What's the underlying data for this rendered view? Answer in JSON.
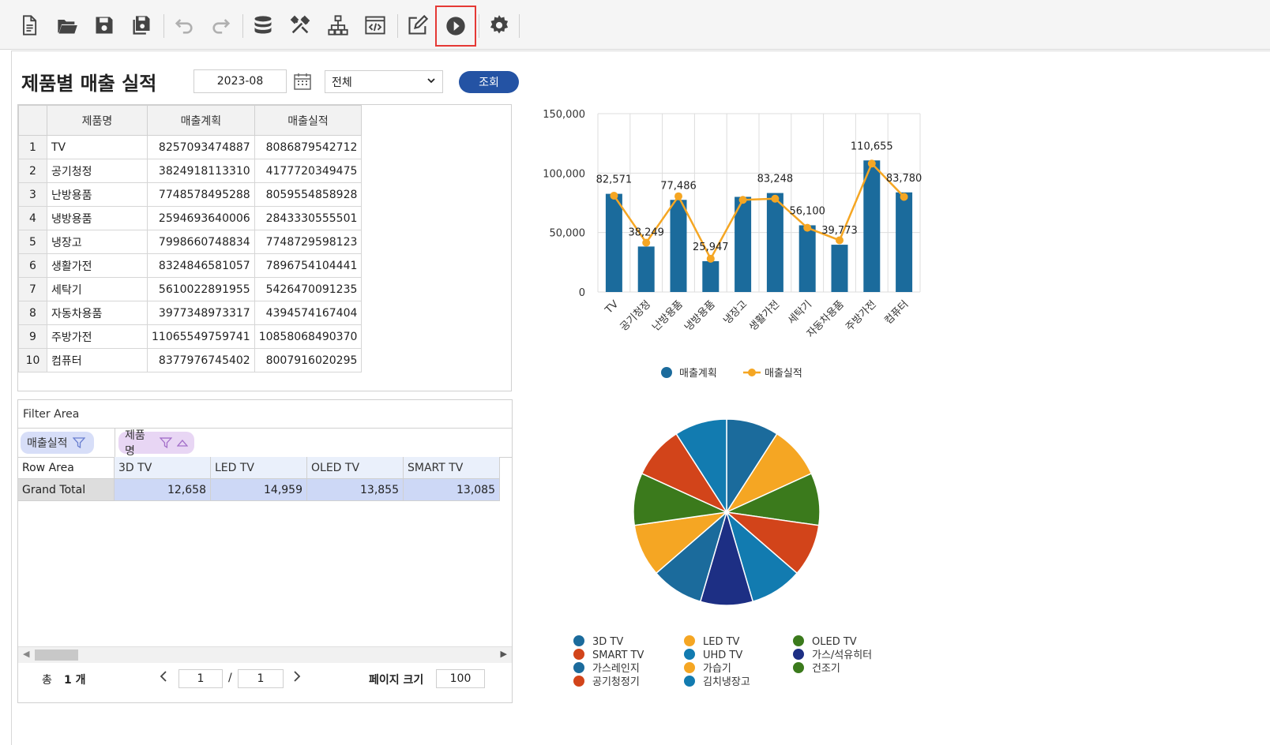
{
  "toolbar": {
    "buttons": [
      "new-document-icon",
      "open-folder-icon",
      "save-icon",
      "save-all-icon",
      "undo-icon",
      "redo-icon",
      "database-icon",
      "tools-icon",
      "hierarchy-icon",
      "code-icon",
      "edit-icon",
      "run-icon",
      "settings-icon"
    ]
  },
  "header": {
    "title": "제품별 매출 실적",
    "date_value": "2023-08",
    "select_value": "전체",
    "query_label": "조회"
  },
  "grid": {
    "columns": [
      "제품명",
      "매출계획",
      "매출실적"
    ],
    "rows": [
      {
        "n": "1",
        "name": "TV",
        "plan": "8257093474887",
        "actual": "8086879542712"
      },
      {
        "n": "2",
        "name": "공기청정",
        "plan": "3824918113310",
        "actual": "4177720349475"
      },
      {
        "n": "3",
        "name": "난방용품",
        "plan": "7748578495288",
        "actual": "8059554858928"
      },
      {
        "n": "4",
        "name": "냉방용품",
        "plan": "2594693640006",
        "actual": "2843330555501"
      },
      {
        "n": "5",
        "name": "냉장고",
        "plan": "7998660748834",
        "actual": "7748729598123"
      },
      {
        "n": "6",
        "name": "생활가전",
        "plan": "8324846581057",
        "actual": "7896754104441"
      },
      {
        "n": "7",
        "name": "세탁기",
        "plan": "5610022891955",
        "actual": "5426470091235"
      },
      {
        "n": "8",
        "name": "자동차용품",
        "plan": "3977348973317",
        "actual": "4394574167404"
      },
      {
        "n": "9",
        "name": "주방가전",
        "plan": "11065549759741",
        "actual": "10858068490370"
      },
      {
        "n": "10",
        "name": "컴퓨터",
        "plan": "8377976745402",
        "actual": "8007916020295"
      }
    ]
  },
  "pivot": {
    "filter_area_label": "Filter Area",
    "value_field": "매출실적",
    "column_field": "제품명",
    "row_area_label": "Row Area",
    "column_headers": [
      "3D TV",
      "LED TV",
      "OLED TV",
      "SMART TV"
    ],
    "grand_total_label": "Grand Total",
    "grand_total_values": [
      "12,658",
      "14,959",
      "13,855",
      "13,085"
    ],
    "pager": {
      "total_prefix": "총",
      "total_count": "1 개",
      "current_page": "1",
      "page_sep": "/",
      "total_pages": "1",
      "page_size_label": "페이지 크기",
      "page_size": "100"
    }
  },
  "chart_data": [
    {
      "type": "bar",
      "categories": [
        "TV",
        "공기청정",
        "난방용품",
        "냉방용품",
        "냉장고",
        "생활가전",
        "세탁기",
        "자동차용품",
        "주방가전",
        "컴퓨터"
      ],
      "series": [
        {
          "name": "매출계획",
          "type": "bar",
          "color": "#1b6b9c",
          "values": [
            82571,
            38249,
            77486,
            25947,
            80000,
            83248,
            56100,
            39773,
            110655,
            83780
          ]
        },
        {
          "name": "매출실적",
          "type": "line",
          "color": "#f5a623",
          "values": [
            81000,
            41500,
            80500,
            28000,
            77500,
            78500,
            54000,
            43500,
            108000,
            80000
          ]
        }
      ],
      "data_labels": [
        {
          "series": "매출계획",
          "index": 0,
          "text": "82,571"
        },
        {
          "series": "매출계획",
          "index": 1,
          "text": "38,249"
        },
        {
          "series": "매출계획",
          "index": 2,
          "text": "77,486"
        },
        {
          "series": "매출계획",
          "index": 3,
          "text": "25,947"
        },
        {
          "series": "매출계획",
          "index": 5,
          "text": "83,248"
        },
        {
          "series": "매출계획",
          "index": 6,
          "text": "56,100"
        },
        {
          "series": "매출계획",
          "index": 7,
          "text": "39,773"
        },
        {
          "series": "매출계획",
          "index": 8,
          "text": "110,655"
        },
        {
          "series": "매출계획",
          "index": 9,
          "text": "83,780"
        }
      ],
      "yticks": [
        "0",
        "50,000",
        "100,000",
        "150,000"
      ],
      "ylim": [
        0,
        150000
      ],
      "legend_position": "bottom",
      "grid": true
    },
    {
      "type": "pie",
      "slices": [
        {
          "label": "3D TV",
          "value": 1,
          "color": "#1b6b9c"
        },
        {
          "label": "LED TV",
          "value": 1,
          "color": "#f5a623"
        },
        {
          "label": "OLED TV",
          "value": 1,
          "color": "#3b7a1c"
        },
        {
          "label": "SMART TV",
          "value": 1,
          "color": "#d2441a"
        },
        {
          "label": "UHD TV",
          "value": 1,
          "color": "#127bb0"
        },
        {
          "label": "가스/석유히터",
          "value": 1,
          "color": "#1d2f84"
        },
        {
          "label": "가스레인지",
          "value": 1,
          "color": "#1b6b9c"
        },
        {
          "label": "가습기",
          "value": 1,
          "color": "#f5a623"
        },
        {
          "label": "건조기",
          "value": 1,
          "color": "#3b7a1c"
        },
        {
          "label": "공기청정기",
          "value": 1,
          "color": "#d2441a"
        },
        {
          "label": "김치냉장고",
          "value": 1,
          "color": "#127bb0"
        }
      ],
      "legend_position": "bottom"
    }
  ]
}
